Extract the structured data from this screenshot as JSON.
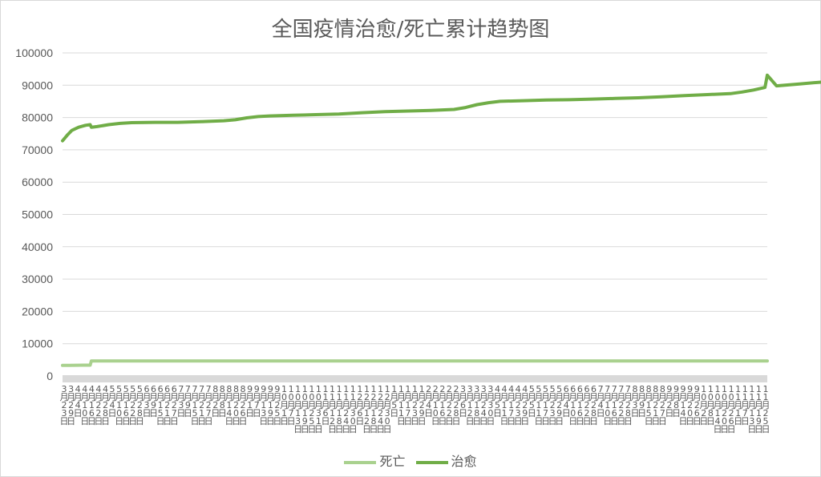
{
  "chart_data": {
    "type": "line",
    "title": "全国疫情治愈/死亡累计趋势图",
    "ylim": [
      0,
      100000
    ],
    "yticks": [
      0,
      10000,
      20000,
      30000,
      40000,
      50000,
      60000,
      70000,
      80000,
      90000,
      100000
    ],
    "xtick_labels": [
      "3月23日",
      "3月29日",
      "4月4日",
      "4月10日",
      "4月16日",
      "4月22日",
      "4月28日",
      "5月4日",
      "5月10日",
      "5月16日",
      "5月22日",
      "5月28日",
      "6月3日",
      "6月9日",
      "6月15日",
      "6月21日",
      "6月27日",
      "7月3日",
      "7月9日",
      "7月15日",
      "7月21日",
      "7月27日",
      "8月2日",
      "8月8日",
      "8月14日",
      "8月20日",
      "8月26日",
      "9月1日",
      "9月7日",
      "9月13日",
      "9月19日",
      "9月25日",
      "10月1日",
      "10月7日",
      "10月13日",
      "10月19日",
      "10月25日",
      "10月31日",
      "11月6日",
      "11月12日",
      "11月18日",
      "11月24日",
      "11月30日",
      "12月6日",
      "12月12日",
      "12月18日",
      "12月24日",
      "12月30日",
      "1月5日",
      "1月11日",
      "1月17日",
      "1月23日",
      "1月29日",
      "2月4日",
      "2月10日",
      "2月16日",
      "2月22日",
      "2月28日",
      "3月6日",
      "3月12日",
      "3月18日",
      "3月24日",
      "3月30日",
      "4月5日",
      "4月11日",
      "4月17日",
      "4月23日",
      "4月29日",
      "5月5日",
      "5月11日",
      "5月17日",
      "5月23日",
      "5月29日",
      "6月4日",
      "6月10日",
      "6月16日",
      "6月22日",
      "6月28日",
      "7月4日",
      "7月10日",
      "7月16日",
      "7月22日",
      "7月28日",
      "8月3日",
      "8月9日",
      "8月15日",
      "8月21日",
      "8月27日",
      "9月2日",
      "9月8日",
      "9月14日",
      "9月20日",
      "9月26日",
      "10月2日",
      "10月8日",
      "10月14日",
      "10月20日",
      "10月26日",
      "11月1日",
      "11月7日",
      "11月13日",
      "11月19日",
      "11月25日"
    ],
    "series": [
      {
        "name": "死亡",
        "color": "#a9d18e",
        "points": [
          [
            0,
            3270
          ],
          [
            6,
            3310
          ],
          [
            12,
            3330
          ],
          [
            18,
            3340
          ],
          [
            24,
            3340
          ],
          [
            25,
            4630
          ],
          [
            30,
            4630
          ],
          [
            60,
            4634
          ],
          [
            120,
            4634
          ],
          [
            180,
            4634
          ],
          [
            240,
            4636
          ],
          [
            300,
            4636
          ],
          [
            360,
            4636
          ],
          [
            420,
            4636
          ],
          [
            480,
            4636
          ],
          [
            540,
            4636
          ],
          [
            600,
            4636
          ],
          [
            612,
            4636
          ]
        ]
      },
      {
        "name": "治愈",
        "color": "#70ad47",
        "points": [
          [
            0,
            72800
          ],
          [
            4,
            74500
          ],
          [
            8,
            76000
          ],
          [
            14,
            77000
          ],
          [
            20,
            77600
          ],
          [
            24,
            77800
          ],
          [
            25,
            77000
          ],
          [
            30,
            77200
          ],
          [
            40,
            77800
          ],
          [
            50,
            78200
          ],
          [
            60,
            78400
          ],
          [
            80,
            78500
          ],
          [
            100,
            78500
          ],
          [
            120,
            78700
          ],
          [
            140,
            79000
          ],
          [
            150,
            79300
          ],
          [
            160,
            79900
          ],
          [
            170,
            80300
          ],
          [
            180,
            80500
          ],
          [
            200,
            80700
          ],
          [
            220,
            80900
          ],
          [
            240,
            81100
          ],
          [
            260,
            81500
          ],
          [
            280,
            81800
          ],
          [
            300,
            82000
          ],
          [
            320,
            82200
          ],
          [
            340,
            82500
          ],
          [
            350,
            83100
          ],
          [
            360,
            84000
          ],
          [
            370,
            84600
          ],
          [
            380,
            85000
          ],
          [
            400,
            85200
          ],
          [
            420,
            85400
          ],
          [
            440,
            85500
          ],
          [
            460,
            85700
          ],
          [
            480,
            85900
          ],
          [
            500,
            86100
          ],
          [
            520,
            86400
          ],
          [
            540,
            86800
          ],
          [
            560,
            87100
          ],
          [
            580,
            87400
          ],
          [
            590,
            87900
          ],
          [
            600,
            88500
          ],
          [
            610,
            89300
          ],
          [
            620,
            89800
          ],
          [
            640,
            90400
          ],
          [
            660,
            91000
          ],
          [
            680,
            91500
          ],
          [
            700,
            91900
          ],
          [
            720,
            92300
          ],
          [
            740,
            92800
          ],
          [
            760,
            93000
          ],
          [
            612,
            93100
          ]
        ]
      }
    ],
    "legend_position": "bottom",
    "grid": true
  }
}
